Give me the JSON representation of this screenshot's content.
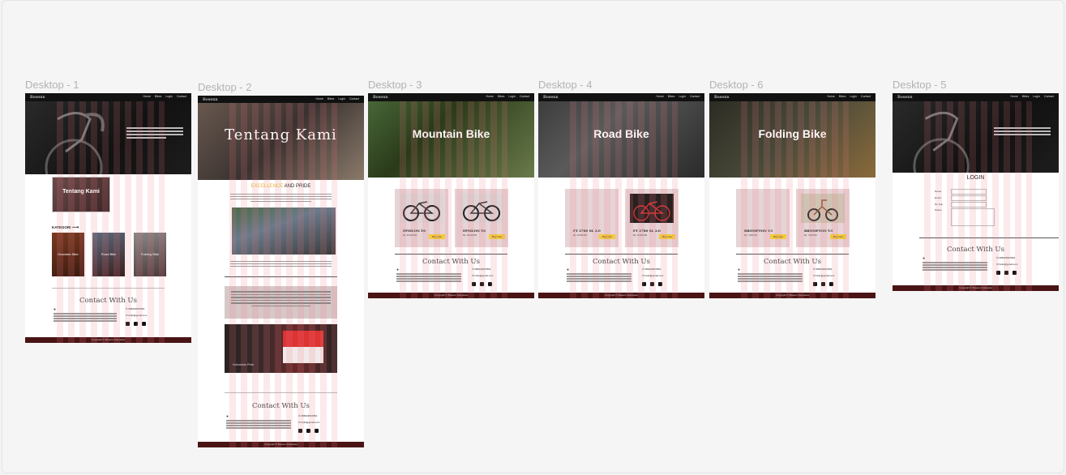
{
  "frames": {
    "d1": {
      "label": "Desktop - 1"
    },
    "d2": {
      "label": "Desktop - 2"
    },
    "d3": {
      "label": "Desktop - 3"
    },
    "d4": {
      "label": "Desktop - 4"
    },
    "d6": {
      "label": "Desktop - 6"
    },
    "d5": {
      "label": "Desktop - 5"
    }
  },
  "nav": {
    "brand": "Bosenn",
    "links": [
      "Home",
      "Bikes",
      "Login",
      "Contact"
    ]
  },
  "d1": {
    "about_card": "Tentang Kami",
    "kategori": "KATEGORI",
    "cats": [
      "Mountain Bike",
      "Road Bike",
      "Folding Bike"
    ]
  },
  "d2": {
    "hero_title": "Tentang Kami",
    "pride_a": "EXCELLENCE",
    "pride_b": "AND PRIDE",
    "flag_caption": "Indonesian Pride"
  },
  "d3": {
    "hero_title": "Mountain Bike",
    "products": [
      {
        "name": "EPSILON T6",
        "price": "Rp. 46.400.000",
        "buy": "Buy now"
      },
      {
        "name": "EPSILON T6",
        "price": "Rp. 46.400.000",
        "buy": "Buy now"
      }
    ]
  },
  "d4": {
    "hero_title": "Road Bike",
    "products": [
      {
        "name": "FT 2780 SL 2.0",
        "price": "Rp. 24.600.000",
        "buy": "Buy now"
      },
      {
        "name": "FT 2780 SL 2.0",
        "price": "Rp. 24.600.000",
        "buy": "Buy now"
      }
    ]
  },
  "d6": {
    "hero_title": "Folding Bike",
    "products": [
      {
        "name": "BROMPTON V3",
        "price": "Rp. 7.200.000",
        "buy": "Buy now"
      },
      {
        "name": "BROMPTON V3",
        "price": "Rp. 7.200.000",
        "buy": "Buy now"
      }
    ]
  },
  "d5": {
    "login_title": "LOGIN",
    "fields": [
      "Nama",
      "Email",
      "No.Telp",
      "Pesan"
    ]
  },
  "contact": {
    "title": "Contact With Us",
    "phone": "085234567891",
    "email": "hello@gmail.com",
    "footer": "Copyright © Bosenn Indonesia"
  },
  "colors": {
    "accent_yellow": "#f2cc3c",
    "footer_maroon": "#4a1414",
    "grid_pink": "#ee7882"
  }
}
